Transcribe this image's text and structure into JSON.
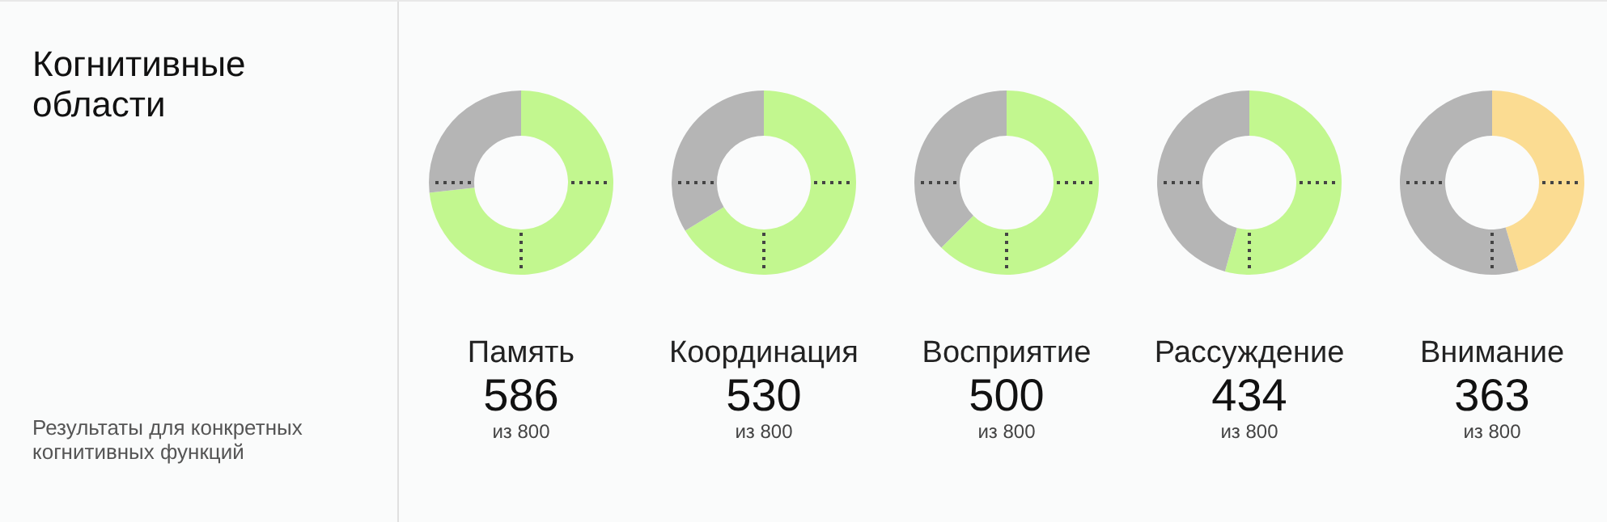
{
  "chart_data": [
    {
      "type": "other",
      "title": "Когнитивные области",
      "annotations": [
        "Результаты для конкретных когнитивных функций"
      ]
    },
    {
      "type": "donut",
      "title": "Память",
      "categories": [
        null,
        null
      ],
      "values": [
        586,
        214
      ],
      "colors": [
        "#c2f78f",
        "#b5b5b5"
      ],
      "value_labels": [
        "586",
        null
      ],
      "annotations": [
        "из 800"
      ]
    },
    {
      "type": "donut",
      "title": "Координация",
      "categories": [
        null,
        null
      ],
      "values": [
        530,
        270
      ],
      "colors": [
        "#c2f78f",
        "#b5b5b5"
      ],
      "value_labels": [
        "530",
        null
      ],
      "annotations": [
        "из 800"
      ]
    },
    {
      "type": "donut",
      "title": "Восприятие",
      "categories": [
        null,
        null
      ],
      "values": [
        500,
        300
      ],
      "colors": [
        "#c2f78f",
        "#b5b5b5"
      ],
      "value_labels": [
        "500",
        null
      ],
      "annotations": [
        "из 800"
      ]
    },
    {
      "type": "donut",
      "title": "Рассуждение",
      "categories": [
        null,
        null
      ],
      "values": [
        434,
        366
      ],
      "colors": [
        "#c2f78f",
        "#b5b5b5"
      ],
      "value_labels": [
        "434",
        null
      ],
      "annotations": [
        "из 800"
      ]
    },
    {
      "type": "donut",
      "title": "Внимание",
      "categories": [
        null,
        null
      ],
      "values": [
        363,
        437
      ],
      "colors": [
        "#fbdc92",
        "#b5b5b5"
      ],
      "value_labels": [
        "363",
        null
      ],
      "annotations": [
        "из 800"
      ]
    }
  ]
}
